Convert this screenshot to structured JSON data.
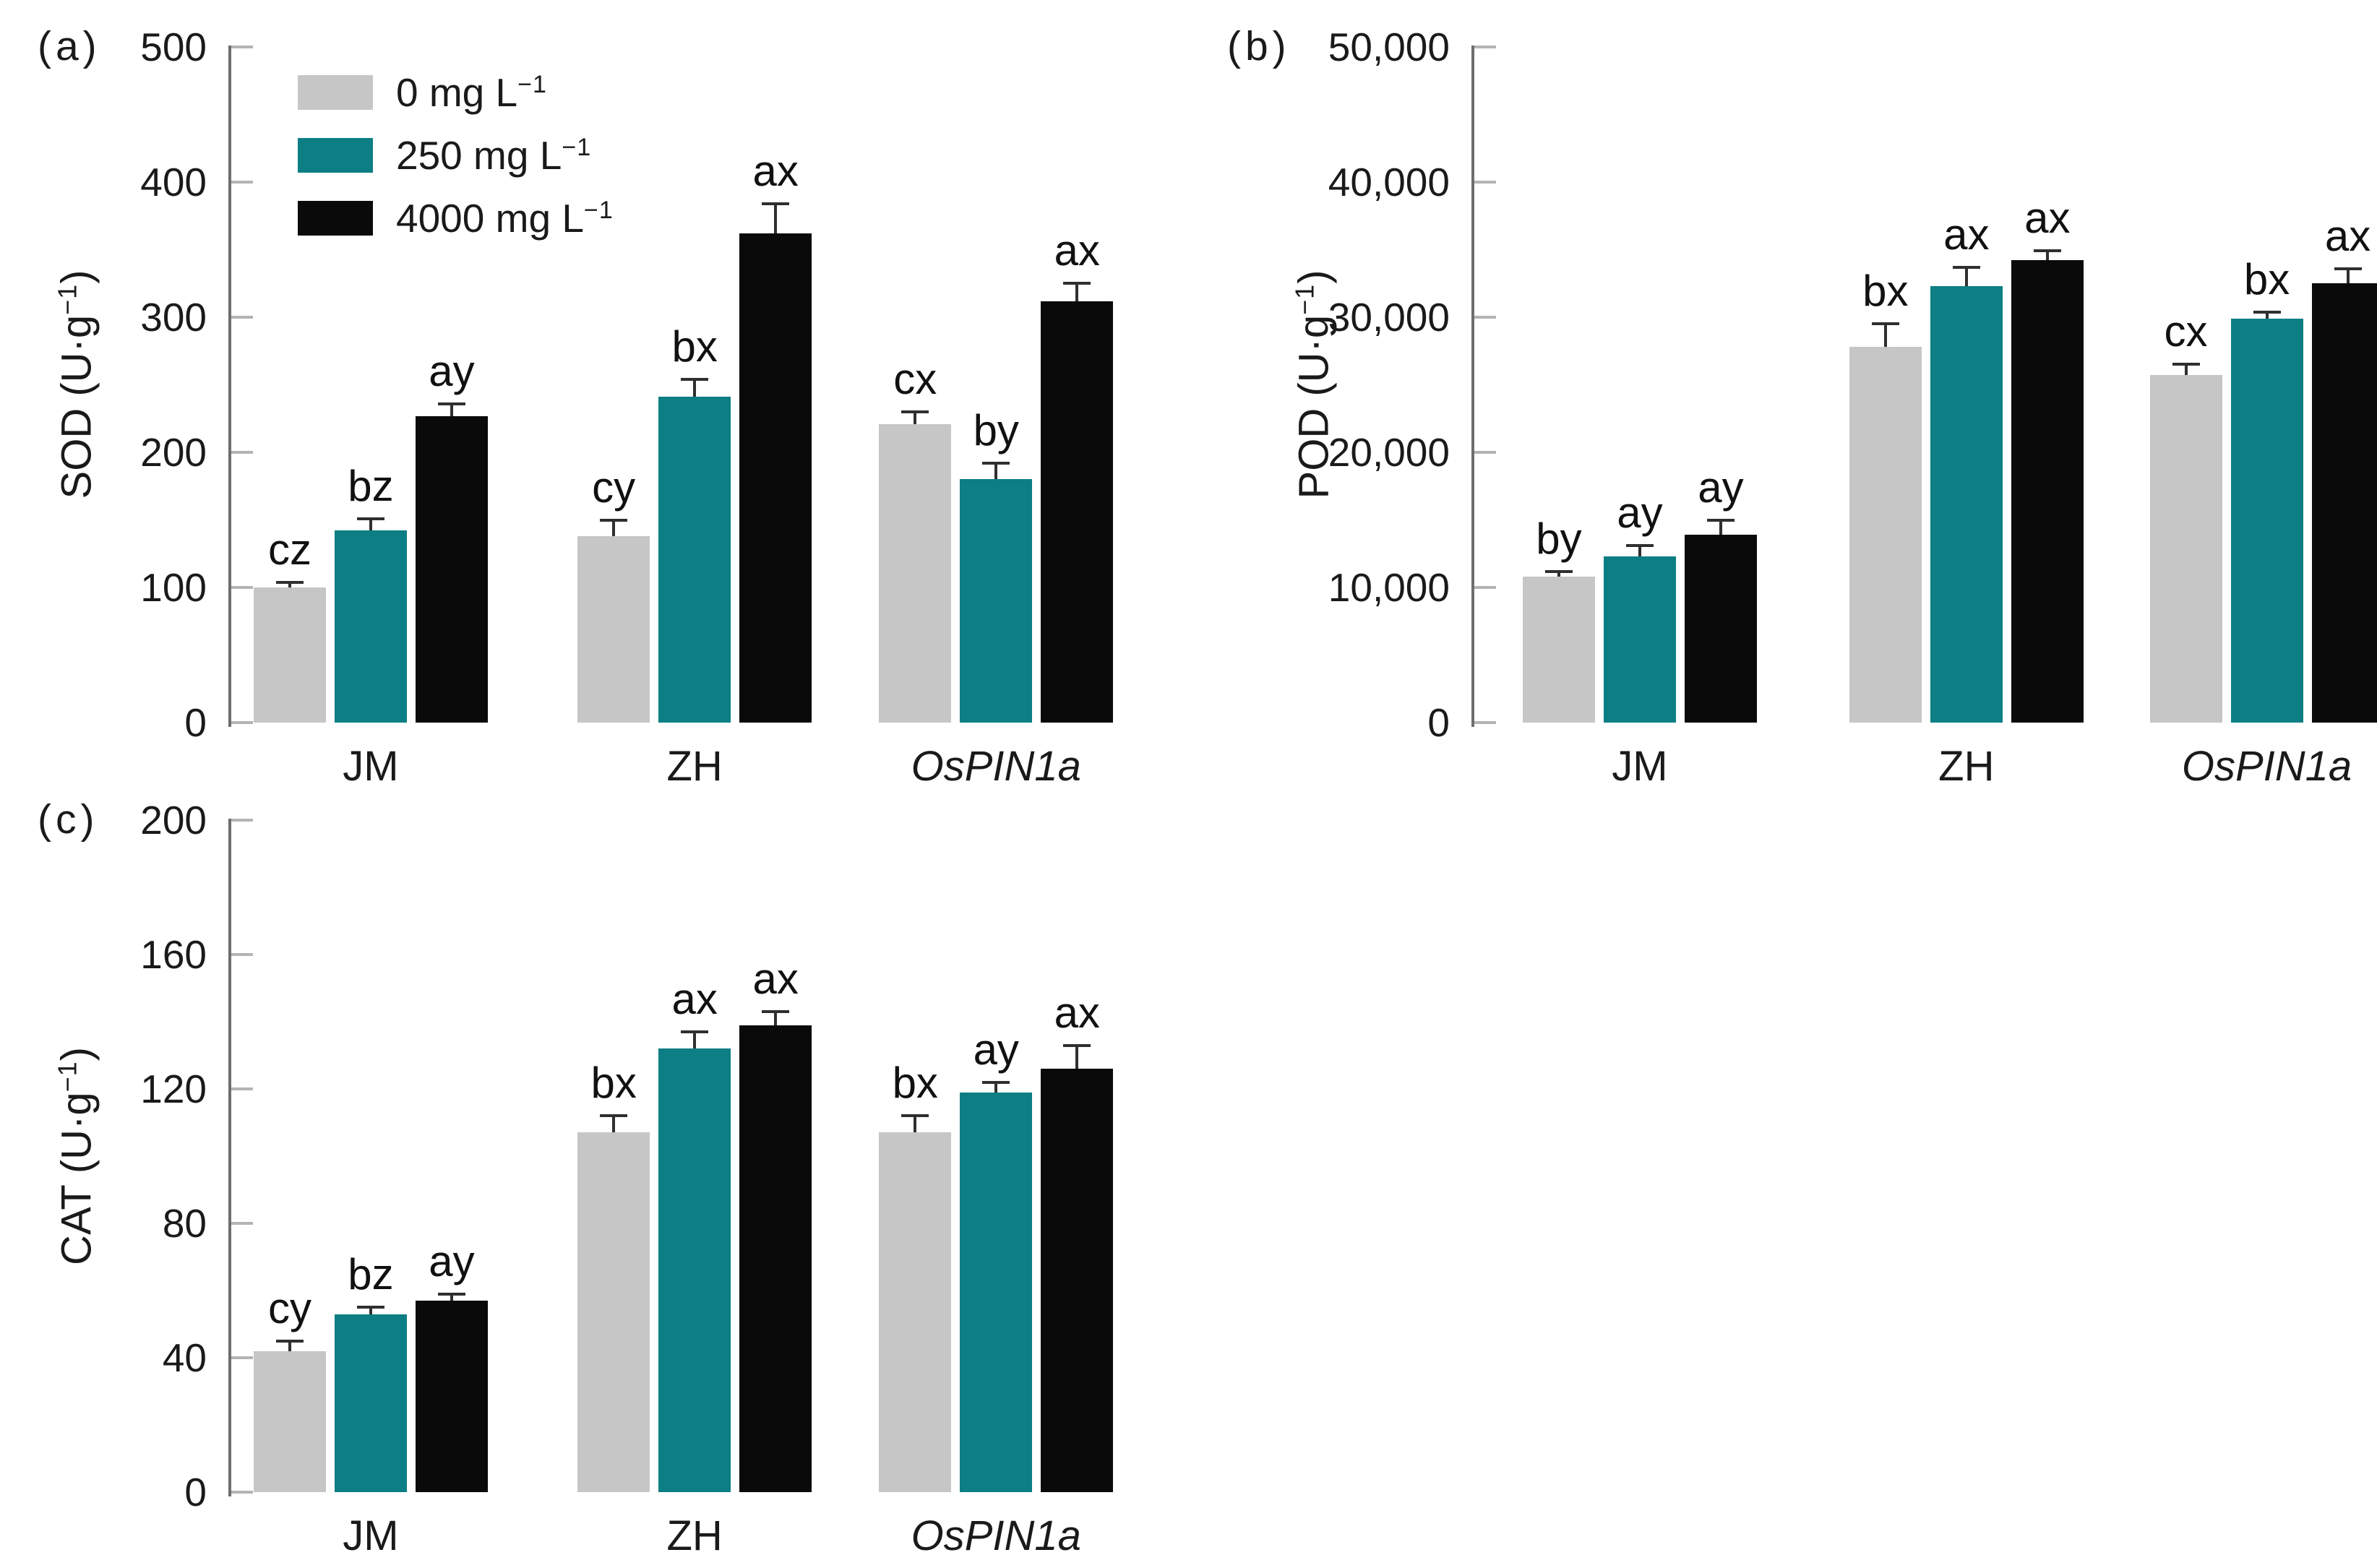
{
  "figure": {
    "legend": {
      "items": [
        {
          "label": "0 mg L⁻¹"
        },
        {
          "label": "250 mg L⁻¹"
        },
        {
          "label": "4000 mg L⁻¹"
        }
      ]
    },
    "colors": {
      "series": [
        "#c6c6c6",
        "#0c7e84",
        "#0a0a0a"
      ],
      "axis": "#6e6e6e",
      "tick": "#b4b4b4",
      "error": "#2f2f2f",
      "text": "#1a1a1a"
    }
  },
  "chart_data": [
    {
      "type": "bar",
      "panel_label": "(a)",
      "ylabel": "SOD (U·g⁻¹)",
      "ylim": [
        0,
        500
      ],
      "yticks": [
        {
          "v": 0,
          "label": "0"
        },
        {
          "v": 100,
          "label": "100"
        },
        {
          "v": 200,
          "label": "200"
        },
        {
          "v": 300,
          "label": "300"
        },
        {
          "v": 400,
          "label": "400"
        },
        {
          "v": 500,
          "label": "500"
        }
      ],
      "categories": [
        {
          "label": "JM",
          "italic": false
        },
        {
          "label": "ZH",
          "italic": false
        },
        {
          "label": "OsPIN1a",
          "italic": true
        }
      ],
      "legend_position": "top-left",
      "grid": false,
      "series": [
        {
          "name": "0 mg L⁻¹",
          "values": [
            100,
            138,
            221
          ],
          "errors": [
            4,
            12,
            9
          ],
          "letters": [
            "cz",
            "cy",
            "cx"
          ]
        },
        {
          "name": "250 mg L⁻¹",
          "values": [
            142,
            241,
            180
          ],
          "errors": [
            9,
            13,
            12
          ],
          "letters": [
            "bz",
            "bx",
            "by"
          ]
        },
        {
          "name": "4000 mg L⁻¹",
          "values": [
            227,
            362,
            312
          ],
          "errors": [
            9,
            22,
            13
          ],
          "letters": [
            "ay",
            "ax",
            "ax"
          ]
        }
      ]
    },
    {
      "type": "bar",
      "panel_label": "(b)",
      "ylabel": "POD (U·g⁻¹)",
      "ylim": [
        0,
        50000
      ],
      "yticks": [
        {
          "v": 0,
          "label": "0"
        },
        {
          "v": 10000,
          "label": "10,000"
        },
        {
          "v": 20000,
          "label": "20,000"
        },
        {
          "v": 30000,
          "label": "30,000"
        },
        {
          "v": 40000,
          "label": "40,000"
        },
        {
          "v": 50000,
          "label": "50,000"
        }
      ],
      "categories": [
        {
          "label": "JM",
          "italic": false
        },
        {
          "label": "ZH",
          "italic": false
        },
        {
          "label": "OsPIN1a",
          "italic": true
        }
      ],
      "legend_position": "none",
      "grid": false,
      "series": [
        {
          "name": "0 mg L⁻¹",
          "values": [
            10800,
            27800,
            25700
          ],
          "errors": [
            400,
            1700,
            800
          ],
          "letters": [
            "by",
            "bx",
            "cx"
          ]
        },
        {
          "name": "250 mg L⁻¹",
          "values": [
            12300,
            32300,
            29900
          ],
          "errors": [
            800,
            1400,
            500
          ],
          "letters": [
            "ay",
            "ax",
            "bx"
          ]
        },
        {
          "name": "4000 mg L⁻¹",
          "values": [
            13900,
            34200,
            32500
          ],
          "errors": [
            1100,
            700,
            1100
          ],
          "letters": [
            "ay",
            "ax",
            "ax"
          ]
        }
      ]
    },
    {
      "type": "bar",
      "panel_label": "(c)",
      "ylabel": "CAT (U·g⁻¹)",
      "ylim": [
        0,
        200
      ],
      "yticks": [
        {
          "v": 0,
          "label": "0"
        },
        {
          "v": 40,
          "label": "40"
        },
        {
          "v": 80,
          "label": "80"
        },
        {
          "v": 120,
          "label": "120"
        },
        {
          "v": 160,
          "label": "160"
        },
        {
          "v": 200,
          "label": "200"
        }
      ],
      "categories": [
        {
          "label": "JM",
          "italic": false
        },
        {
          "label": "ZH",
          "italic": false
        },
        {
          "label": "OsPIN1a",
          "italic": true
        }
      ],
      "legend_position": "none",
      "grid": false,
      "series": [
        {
          "name": "0 mg L⁻¹",
          "values": [
            42,
            107,
            107
          ],
          "errors": [
            3,
            5,
            5
          ],
          "letters": [
            "cy",
            "bx",
            "bx"
          ]
        },
        {
          "name": "250 mg L⁻¹",
          "values": [
            53,
            132,
            119
          ],
          "errors": [
            2,
            5,
            3
          ],
          "letters": [
            "bz",
            "ax",
            "ay"
          ]
        },
        {
          "name": "4000 mg L⁻¹",
          "values": [
            57,
            139,
            126
          ],
          "errors": [
            2,
            4,
            7
          ],
          "letters": [
            "ay",
            "ax",
            "ax"
          ]
        }
      ]
    }
  ]
}
